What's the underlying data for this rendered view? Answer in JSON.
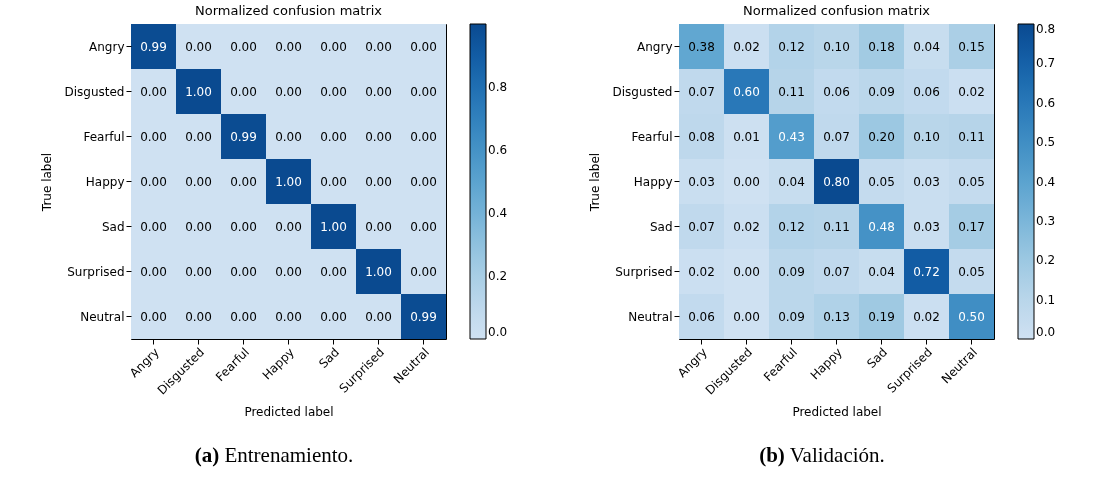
{
  "chart_data": [
    {
      "type": "heatmap",
      "title": "Normalized confusion matrix",
      "xlabel": "Predicted label",
      "ylabel": "True label",
      "categories": [
        "Angry",
        "Disgusted",
        "Fearful",
        "Happy",
        "Sad",
        "Surprised",
        "Neutral"
      ],
      "y_categories": [
        "Angry",
        "Disgusted",
        "Fearful",
        "Happy",
        "Sad",
        "Surprised",
        "Neutral"
      ],
      "cells": [
        [
          0.99,
          0,
          0,
          0,
          0,
          0,
          0
        ],
        [
          0,
          1,
          0,
          0,
          0,
          0,
          0
        ],
        [
          0,
          0,
          0.99,
          0,
          0,
          0,
          0
        ],
        [
          0,
          0,
          0,
          1,
          0,
          0,
          0
        ],
        [
          0,
          0,
          0,
          0,
          1,
          0,
          0
        ],
        [
          0,
          0,
          0,
          0,
          0,
          1,
          0
        ],
        [
          0,
          0,
          0,
          0,
          0,
          0,
          0.99
        ]
      ],
      "cell_labels": [
        [
          "0.99",
          "0.00",
          "0.00",
          "0.00",
          "0.00",
          "0.00",
          "0.00"
        ],
        [
          "0.00",
          "1.00",
          "0.00",
          "0.00",
          "0.00",
          "0.00",
          "0.00"
        ],
        [
          "0.00",
          "0.00",
          "0.99",
          "0.00",
          "0.00",
          "0.00",
          "0.00"
        ],
        [
          "0.00",
          "0.00",
          "0.00",
          "1.00",
          "0.00",
          "0.00",
          "0.00"
        ],
        [
          "0.00",
          "0.00",
          "0.00",
          "0.00",
          "1.00",
          "0.00",
          "0.00"
        ],
        [
          "0.00",
          "0.00",
          "0.00",
          "0.00",
          "0.00",
          "1.00",
          "0.00"
        ],
        [
          "0.00",
          "0.00",
          "0.00",
          "0.00",
          "0.00",
          "0.00",
          "0.99"
        ]
      ],
      "clim": [
        0,
        1
      ],
      "cticks": [
        {
          "value": 0,
          "label": "0.0"
        },
        0.2,
        0.4,
        0.6,
        0.8
      ],
      "annotations": [
        "(a) Entrenamiento."
      ]
    },
    {
      "type": "heatmap",
      "title": "Normalized confusion matrix",
      "xlabel": "Predicted label",
      "ylabel": "True label",
      "categories": [
        "Angry",
        "Disgusted",
        "Fearful",
        "Happy",
        "Sad",
        "Surprised",
        "Neutral"
      ],
      "y_categories": [
        "Angry",
        "Disgusted",
        "Fearful",
        "Happy",
        "Sad",
        "Surprised",
        "Neutral"
      ],
      "cells": [
        [
          0.38,
          0.02,
          0.12,
          0.1,
          0.18,
          0.04,
          0.15
        ],
        [
          0.07,
          0.6,
          0.11,
          0.06,
          0.09,
          0.06,
          0.02
        ],
        [
          0.08,
          0.01,
          0.43,
          0.07,
          0.2,
          0.1,
          0.11
        ],
        [
          0.03,
          0,
          0.04,
          0.8,
          0.05,
          0.03,
          0.05
        ],
        [
          0.07,
          0.02,
          0.12,
          0.11,
          0.48,
          0.03,
          0.17
        ],
        [
          0.02,
          0,
          0.09,
          0.07,
          0.04,
          0.72,
          0.05
        ],
        [
          0.06,
          0,
          0.09,
          0.13,
          0.19,
          0.02,
          0.5
        ]
      ],
      "cell_labels": [
        [
          "0.38",
          "0.02",
          "0.12",
          "0.10",
          "0.18",
          "0.04",
          "0.15"
        ],
        [
          "0.07",
          "0.60",
          "0.11",
          "0.06",
          "0.09",
          "0.06",
          "0.02"
        ],
        [
          "0.08",
          "0.01",
          "0.43",
          "0.07",
          "0.20",
          "0.10",
          "0.11"
        ],
        [
          "0.03",
          "0.00",
          "0.04",
          "0.80",
          "0.05",
          "0.03",
          "0.05"
        ],
        [
          "0.07",
          "0.02",
          "0.12",
          "0.11",
          "0.48",
          "0.03",
          "0.17"
        ],
        [
          "0.02",
          "0.00",
          "0.09",
          "0.07",
          "0.04",
          "0.72",
          "0.05"
        ],
        [
          "0.06",
          "0.00",
          "0.09",
          "0.13",
          "0.19",
          "0.02",
          "0.50"
        ]
      ],
      "clim": [
        0,
        0.8
      ],
      "cticks": [
        {
          "value": 0,
          "label": "0.0"
        },
        0.1,
        0.2,
        0.3,
        0.4,
        0.5,
        0.6,
        0.7,
        0.8
      ],
      "annotations": [
        "(b) Validación."
      ]
    }
  ]
}
